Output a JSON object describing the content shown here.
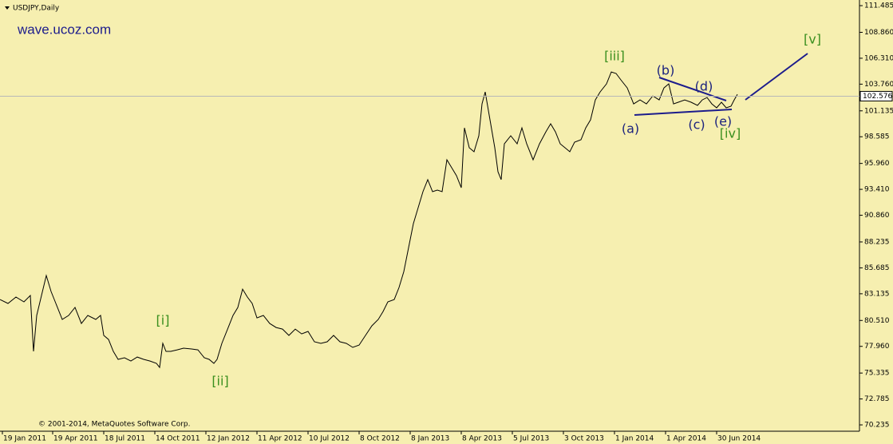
{
  "chart_data": {
    "type": "line",
    "title": "USDJPY,Daily",
    "watermark": "wave.ucoz.com",
    "copyright": "© 2001-2014, MetaQuotes Software Corp.",
    "color": "#000000",
    "current_price": 102.576,
    "x": [
      0,
      10,
      20,
      30,
      38,
      42,
      46,
      52,
      58,
      64,
      70,
      78,
      86,
      94,
      102,
      110,
      120,
      126,
      130,
      136,
      142,
      148,
      156,
      164,
      172,
      180,
      188,
      196,
      200,
      204,
      208,
      214,
      222,
      230,
      240,
      248,
      256,
      262,
      268,
      272,
      278,
      286,
      292,
      298,
      304,
      310,
      316,
      322,
      330,
      338,
      346,
      354,
      362,
      370,
      378,
      386,
      394,
      402,
      410,
      418,
      426,
      434,
      442,
      450,
      458,
      466,
      474,
      480,
      486,
      494,
      500,
      506,
      512,
      518,
      524,
      530,
      536,
      542,
      548,
      554,
      560,
      566,
      572,
      578,
      582,
      588,
      594,
      600,
      604,
      608,
      614,
      620,
      624,
      628,
      632,
      640,
      648,
      654,
      660,
      668,
      676,
      684,
      690,
      696,
      702,
      708,
      714,
      720,
      728,
      734,
      740,
      746,
      752,
      760,
      766,
      772,
      778,
      786,
      794,
      802,
      810,
      818,
      826,
      832,
      838,
      844,
      850,
      858,
      866,
      874,
      880,
      886,
      892,
      898,
      904,
      910,
      916,
      920,
      924
    ],
    "values": [
      82.57,
      82.18,
      82.81,
      82.34,
      82.97,
      77.47,
      81.0,
      82.97,
      84.93,
      83.36,
      82.18,
      80.61,
      81.0,
      81.79,
      80.21,
      81.0,
      80.61,
      81.0,
      79.04,
      78.64,
      77.47,
      76.68,
      76.84,
      76.52,
      76.91,
      76.68,
      76.52,
      76.29,
      75.89,
      78.25,
      77.47,
      77.47,
      77.62,
      77.78,
      77.7,
      77.62,
      76.84,
      76.68,
      76.29,
      76.68,
      78.25,
      79.82,
      81.0,
      81.79,
      83.59,
      82.81,
      82.18,
      80.76,
      81.0,
      80.21,
      79.82,
      79.66,
      79.04,
      79.66,
      79.19,
      79.43,
      78.41,
      78.25,
      78.41,
      79.04,
      78.41,
      78.25,
      77.86,
      78.09,
      79.04,
      79.98,
      80.61,
      81.39,
      82.34,
      82.57,
      83.75,
      85.32,
      87.68,
      90.04,
      91.61,
      93.18,
      94.36,
      93.18,
      93.34,
      93.18,
      96.32,
      95.54,
      94.75,
      93.57,
      99.46,
      97.5,
      97.11,
      98.68,
      101.82,
      103.0,
      100.25,
      97.5,
      95.14,
      94.36,
      97.89,
      98.68,
      97.89,
      99.46,
      97.89,
      96.32,
      97.89,
      99.07,
      99.86,
      99.07,
      97.89,
      97.5,
      97.11,
      98.05,
      98.29,
      99.46,
      100.25,
      102.21,
      103.0,
      103.79,
      104.96,
      104.81,
      104.18,
      103.39,
      101.82,
      102.21,
      101.82,
      102.6,
      102.21,
      103.39,
      103.79,
      101.82,
      101.98,
      102.21,
      101.98,
      101.67,
      102.21,
      102.45,
      101.82,
      101.43,
      101.98,
      101.43,
      101.59,
      102.21,
      102.76
    ],
    "xlim": [
      0,
      1077
    ],
    "xticks": [
      {
        "value": 3,
        "label": "19 Jan 2011"
      },
      {
        "value": 66,
        "label": "19 Apr 2011"
      },
      {
        "value": 130,
        "label": "18 Jul 2011"
      },
      {
        "value": 194,
        "label": "14 Oct 2011"
      },
      {
        "value": 258,
        "label": "12 Jan 2012"
      },
      {
        "value": 322,
        "label": "11 Apr 2012"
      },
      {
        "value": 386,
        "label": "10 Jul 2012"
      },
      {
        "value": 450,
        "label": "8 Oct 2012"
      },
      {
        "value": 514,
        "label": "8 Jan 2013"
      },
      {
        "value": 578,
        "label": "8 Apr 2013"
      },
      {
        "value": 642,
        "label": "5 Jul 2013"
      },
      {
        "value": 706,
        "label": "3 Oct 2013"
      },
      {
        "value": 770,
        "label": "1 Jan 2014"
      },
      {
        "value": 834,
        "label": "1 Apr 2014"
      },
      {
        "value": 898,
        "label": "30 Jun 2014"
      }
    ],
    "ylim": [
      69.61,
      112.04
    ],
    "yticks": [
      111.485,
      {
        "value": 108.86,
        "label": "108.860"
      },
      {
        "value": 106.31,
        "label": "106.310"
      },
      {
        "value": 103.76,
        "label": "103.760"
      },
      101.135,
      98.585,
      {
        "value": 95.96,
        "label": "95.960"
      },
      {
        "value": 93.41,
        "label": "93.410"
      },
      {
        "value": 90.86,
        "label": "90.860"
      },
      88.235,
      85.685,
      83.135,
      {
        "value": 80.51,
        "label": "80.510"
      },
      {
        "value": 77.96,
        "label": "77.960"
      },
      75.335,
      72.785,
      70.235
    ],
    "annotations": [
      {
        "text": "[i]",
        "color": "#3a8f1e"
      },
      {
        "text": "[ii]",
        "color": "#3a8f1e"
      },
      {
        "text": "[iii]",
        "color": "#3a8f1e"
      },
      {
        "text": "[iv]",
        "color": "#3a8f1e"
      },
      {
        "text": "[v]",
        "color": "#3a8f1e"
      },
      {
        "text": "(a)",
        "color": "#1c237e"
      },
      {
        "text": "(b)",
        "color": "#1c237e"
      },
      {
        "text": "(c)",
        "color": "#1c237e"
      },
      {
        "text": "(d)",
        "color": "#1c237e"
      },
      {
        "text": "(e)",
        "color": "#1c237e"
      }
    ]
  }
}
